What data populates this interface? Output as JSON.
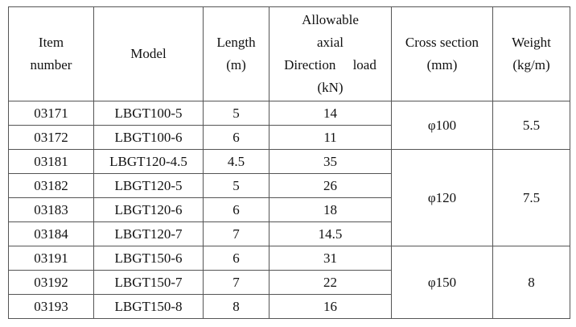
{
  "headers": {
    "item": [
      "Item",
      "number"
    ],
    "model": "Model",
    "length": [
      "Length",
      "(m)"
    ],
    "load": [
      "Allowable",
      "axial",
      "Direction     load",
      "(kN)"
    ],
    "cross": [
      "Cross section",
      "(mm)"
    ],
    "weight": [
      "Weight",
      "(kg/m)"
    ]
  },
  "rows": [
    {
      "item": "03171",
      "model": "LBGT100-5",
      "length": "5",
      "load": "14"
    },
    {
      "item": "03172",
      "model": "LBGT100-6",
      "length": "6",
      "load": "11"
    },
    {
      "item": "03181",
      "model": "LBGT120-4.5",
      "length": "4.5",
      "load": "35"
    },
    {
      "item": "03182",
      "model": "LBGT120-5",
      "length": "5",
      "load": "26"
    },
    {
      "item": "03183",
      "model": "LBGT120-6",
      "length": "6",
      "load": "18"
    },
    {
      "item": "03184",
      "model": "LBGT120-7",
      "length": "7",
      "load": "14.5"
    },
    {
      "item": "03191",
      "model": "LBGT150-6",
      "length": "6",
      "load": "31"
    },
    {
      "item": "03192",
      "model": "LBGT150-7",
      "length": "7",
      "load": "22"
    },
    {
      "item": "03193",
      "model": "LBGT150-8",
      "length": "8",
      "load": "16"
    }
  ],
  "groups": [
    {
      "cross": "φ100",
      "weight": "5.5"
    },
    {
      "cross": "φ120",
      "weight": "7.5"
    },
    {
      "cross": "φ150",
      "weight": "8"
    }
  ]
}
